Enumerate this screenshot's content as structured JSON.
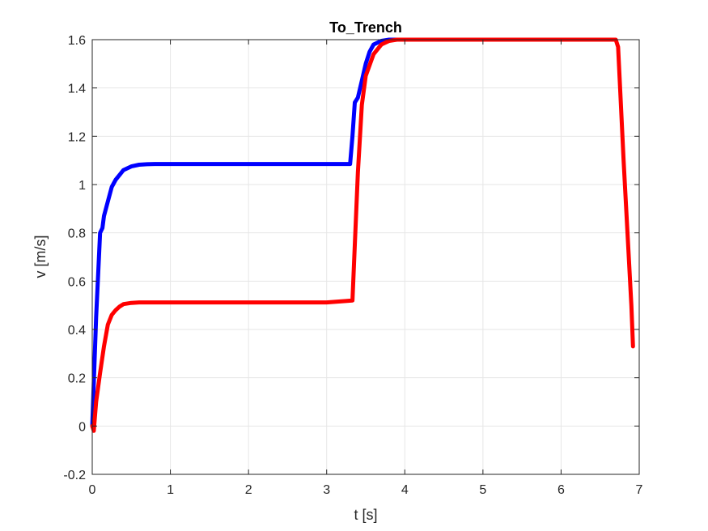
{
  "chart_data": {
    "type": "line",
    "title": "To_Trench",
    "xlabel": "t [s]",
    "ylabel": "v [m/s]",
    "xlim": [
      0,
      7
    ],
    "ylim": [
      -0.2,
      1.6
    ],
    "xticks": [
      "0",
      "1",
      "2",
      "3",
      "4",
      "5",
      "6",
      "7"
    ],
    "yticks": [
      "-0.2",
      "0",
      "0.2",
      "0.4",
      "0.6",
      "0.8",
      "1",
      "1.2",
      "1.4",
      "1.6"
    ],
    "grid": true,
    "colors": {
      "series_a": "#0000ff",
      "series_b": "#ff0000",
      "grid": "#e6e6e6",
      "axis": "#262626"
    },
    "series": [
      {
        "color": "#0000ff",
        "x": [
          0,
          0.05,
          0.1,
          0.13,
          0.15,
          0.2,
          0.25,
          0.3,
          0.35,
          0.4,
          0.5,
          0.6,
          0.7,
          0.8,
          1.0,
          1.5,
          2.0,
          2.5,
          3.0,
          3.3,
          3.33,
          3.36,
          3.4,
          3.45,
          3.5,
          3.55,
          3.6,
          3.7,
          3.8,
          3.9,
          4.0
        ],
        "y": [
          0,
          0.45,
          0.8,
          0.82,
          0.87,
          0.93,
          0.99,
          1.02,
          1.04,
          1.06,
          1.075,
          1.082,
          1.084,
          1.085,
          1.085,
          1.085,
          1.085,
          1.085,
          1.085,
          1.085,
          1.2,
          1.34,
          1.36,
          1.43,
          1.5,
          1.55,
          1.58,
          1.595,
          1.6,
          1.6,
          1.6
        ]
      },
      {
        "color": "#ff0000",
        "x": [
          0,
          0.02,
          0.05,
          0.1,
          0.15,
          0.2,
          0.25,
          0.3,
          0.35,
          0.4,
          0.5,
          0.6,
          0.8,
          1.0,
          1.5,
          2.0,
          2.5,
          3.0,
          3.33,
          3.36,
          3.4,
          3.45,
          3.5,
          3.6,
          3.7,
          3.8,
          3.9,
          4.0,
          4.5,
          5.0,
          6.0,
          6.7,
          6.73,
          6.8,
          6.9,
          6.92
        ],
        "y": [
          0,
          -0.02,
          0.1,
          0.22,
          0.33,
          0.42,
          0.46,
          0.48,
          0.495,
          0.505,
          0.51,
          0.512,
          0.512,
          0.512,
          0.512,
          0.512,
          0.512,
          0.512,
          0.52,
          0.75,
          1.05,
          1.33,
          1.45,
          1.54,
          1.58,
          1.595,
          1.6,
          1.6,
          1.6,
          1.6,
          1.6,
          1.6,
          1.57,
          1.1,
          0.5,
          0.33
        ]
      }
    ]
  }
}
